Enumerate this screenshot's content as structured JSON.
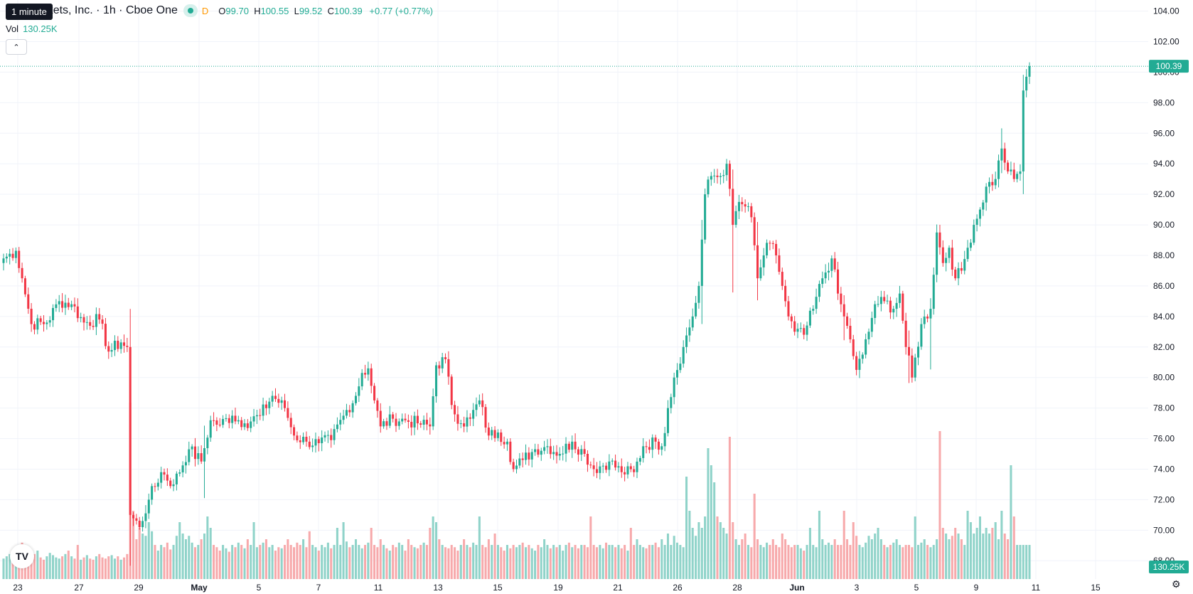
{
  "legend": {
    "symbol": "ood Markets, Inc. · 1h · Cboe One",
    "d_badge": "D",
    "o_label": "O",
    "o_value": "99.70",
    "h_label": "H",
    "h_value": "100.55",
    "l_label": "L",
    "l_value": "99.52",
    "c_label": "C",
    "c_value": "100.39",
    "change": "+0.77 (+0.77%)"
  },
  "tooltip": "1 minute",
  "volume": {
    "label": "Vol",
    "value": "130.25K"
  },
  "collapse_icon": "chevron-up-icon",
  "logo": "tradingview-logo",
  "settings_icon": "gear-icon",
  "colors": {
    "up": "#22ab94",
    "down": "#f23645",
    "up_vol": "#8fd3c9",
    "down_vol": "#f7a9ab",
    "grid": "#f0f3fa",
    "axis_text": "#131722"
  },
  "chart_data": {
    "type": "candlestick",
    "y_ticks": [
      "104.00",
      "102.00",
      "100.00",
      "98.00",
      "96.00",
      "94.00",
      "92.00",
      "90.00",
      "88.00",
      "86.00",
      "84.00",
      "82.00",
      "80.00",
      "78.00",
      "76.00",
      "74.00",
      "72.00",
      "70.00",
      "68.00"
    ],
    "ylim": [
      66.8,
      104.4
    ],
    "x_ticks": [
      "23",
      "27",
      "29",
      "May",
      "5",
      "7",
      "11",
      "13",
      "15",
      "19",
      "21",
      "26",
      "28",
      "Jun",
      "3",
      "5",
      "9",
      "11",
      "15"
    ],
    "last_price_label": "100.39",
    "last_price": 100.39,
    "volume_label": "130.25K",
    "grid": true,
    "anchors": [
      [
        0,
        87.8
      ],
      [
        4,
        88.3
      ],
      [
        6,
        86.5
      ],
      [
        9,
        83.5
      ],
      [
        14,
        83.6
      ],
      [
        18,
        85.0
      ],
      [
        22,
        84.8
      ],
      [
        26,
        83.6
      ],
      [
        31,
        83.8
      ],
      [
        34,
        81.7
      ],
      [
        38,
        82.3
      ],
      [
        40,
        82.0
      ],
      [
        41,
        71.0
      ],
      [
        44,
        70.2
      ],
      [
        47,
        72.0
      ],
      [
        51,
        73.8
      ],
      [
        55,
        73.0
      ],
      [
        60,
        75.3
      ],
      [
        64,
        74.5
      ],
      [
        67,
        77.2
      ],
      [
        70,
        76.9
      ],
      [
        74,
        77.5
      ],
      [
        78,
        77.0
      ],
      [
        83,
        77.5
      ],
      [
        87,
        78.8
      ],
      [
        91,
        78.0
      ],
      [
        94,
        76.2
      ],
      [
        98,
        75.8
      ],
      [
        102,
        75.7
      ],
      [
        106,
        75.9
      ],
      [
        110,
        77.5
      ],
      [
        114,
        78.8
      ],
      [
        116,
        80.3
      ],
      [
        118,
        80.6
      ],
      [
        120,
        78.5
      ],
      [
        122,
        76.8
      ],
      [
        126,
        77.3
      ],
      [
        130,
        77.2
      ],
      [
        134,
        77.0
      ],
      [
        138,
        76.8
      ],
      [
        140,
        80.8
      ],
      [
        143,
        81.2
      ],
      [
        145,
        78.2
      ],
      [
        148,
        77.0
      ],
      [
        151,
        77.3
      ],
      [
        154,
        78.5
      ],
      [
        157,
        76.2
      ],
      [
        160,
        76.4
      ],
      [
        163,
        75.8
      ],
      [
        165,
        74.0
      ],
      [
        168,
        74.6
      ],
      [
        172,
        75.3
      ],
      [
        176,
        75.5
      ],
      [
        180,
        75.0
      ],
      [
        184,
        75.8
      ],
      [
        188,
        75.0
      ],
      [
        191,
        74.0
      ],
      [
        196,
        74.5
      ],
      [
        200,
        73.8
      ],
      [
        204,
        73.8
      ],
      [
        207,
        75.5
      ],
      [
        211,
        75.8
      ],
      [
        213,
        75.5
      ],
      [
        215,
        78.0
      ],
      [
        217,
        80.0
      ],
      [
        220,
        82.0
      ],
      [
        223,
        84.0
      ],
      [
        225,
        86.0
      ],
      [
        227,
        92.0
      ],
      [
        229,
        93.2
      ],
      [
        232,
        93.2
      ],
      [
        234,
        94.0
      ],
      [
        236,
        90.0
      ],
      [
        238,
        91.5
      ],
      [
        240,
        91.2
      ],
      [
        242,
        90.5
      ],
      [
        244,
        86.5
      ],
      [
        246,
        88.0
      ],
      [
        248,
        88.8
      ],
      [
        250,
        88.0
      ],
      [
        252,
        86.0
      ],
      [
        254,
        84.0
      ],
      [
        256,
        83.0
      ],
      [
        259,
        82.8
      ],
      [
        262,
        84.5
      ],
      [
        265,
        86.5
      ],
      [
        268,
        87.8
      ],
      [
        270,
        85.5
      ],
      [
        272,
        84.0
      ],
      [
        274,
        82.5
      ],
      [
        276,
        80.5
      ],
      [
        278,
        81.5
      ],
      [
        280,
        83.0
      ],
      [
        282,
        84.8
      ],
      [
        285,
        85.0
      ],
      [
        288,
        84.5
      ],
      [
        290,
        85.5
      ],
      [
        292,
        82.0
      ],
      [
        294,
        80.0
      ],
      [
        297,
        83.5
      ],
      [
        300,
        84.5
      ],
      [
        302,
        89.5
      ],
      [
        304,
        87.5
      ],
      [
        306,
        88.5
      ],
      [
        308,
        86.5
      ],
      [
        310,
        87.0
      ],
      [
        312,
        88.5
      ],
      [
        314,
        90.0
      ],
      [
        316,
        91.0
      ],
      [
        318,
        92.5
      ],
      [
        321,
        93.0
      ],
      [
        323,
        95.0
      ],
      [
        325,
        93.5
      ],
      [
        327,
        93.0
      ],
      [
        329,
        93.5
      ],
      [
        330,
        98.8
      ],
      [
        331,
        99.7
      ],
      [
        332,
        100.39
      ]
    ],
    "spikes": [
      [
        41,
        2.0,
        -3.0
      ],
      [
        65,
        1.2,
        -2.0
      ],
      [
        226,
        1.0,
        -2.0
      ],
      [
        236,
        1.0,
        -4.0
      ],
      [
        244,
        1.0,
        -1.0
      ],
      [
        272,
        0.3,
        -1.2
      ],
      [
        293,
        0.6,
        -1.5
      ],
      [
        300,
        0.2,
        -3.0
      ],
      [
        323,
        1.0,
        -0.3
      ],
      [
        330,
        0.6,
        -1.2
      ]
    ],
    "volumes": [
      0.18,
      0.2,
      0.22,
      0.19,
      0.25,
      0.3,
      0.32,
      0.27,
      0.2,
      0.18,
      0.22,
      0.25,
      0.19,
      0.17,
      0.2,
      0.23,
      0.21,
      0.19,
      0.18,
      0.2,
      0.22,
      0.25,
      0.2,
      0.18,
      0.3,
      0.17,
      0.19,
      0.21,
      0.18,
      0.17,
      0.2,
      0.22,
      0.19,
      0.18,
      0.2,
      0.21,
      0.18,
      0.2,
      0.17,
      0.19,
      0.22,
      1.55,
      0.6,
      0.35,
      0.45,
      0.4,
      0.38,
      0.5,
      0.42,
      0.3,
      0.25,
      0.3,
      0.28,
      0.32,
      0.26,
      0.3,
      0.38,
      0.5,
      0.4,
      0.35,
      0.38,
      0.32,
      0.28,
      0.3,
      0.35,
      0.4,
      0.55,
      0.45,
      0.3,
      0.28,
      0.25,
      0.3,
      0.27,
      0.24,
      0.3,
      0.28,
      0.32,
      0.3,
      0.27,
      0.35,
      0.3,
      0.5,
      0.28,
      0.3,
      0.32,
      0.35,
      0.28,
      0.3,
      0.25,
      0.28,
      0.27,
      0.3,
      0.35,
      0.3,
      0.28,
      0.32,
      0.3,
      0.35,
      0.28,
      0.42,
      0.3,
      0.28,
      0.25,
      0.3,
      0.28,
      0.32,
      0.27,
      0.3,
      0.45,
      0.3,
      0.5,
      0.33,
      0.28,
      0.3,
      0.35,
      0.3,
      0.27,
      0.3,
      0.32,
      0.45,
      0.3,
      0.28,
      0.35,
      0.3,
      0.27,
      0.25,
      0.3,
      0.28,
      0.32,
      0.3,
      0.25,
      0.35,
      0.3,
      0.28,
      0.27,
      0.3,
      0.32,
      0.3,
      0.45,
      0.55,
      0.5,
      0.35,
      0.3,
      0.28,
      0.27,
      0.3,
      0.28,
      0.25,
      0.3,
      0.35,
      0.3,
      0.28,
      0.32,
      0.3,
      0.55,
      0.3,
      0.28,
      0.35,
      0.3,
      0.4,
      0.3,
      0.28,
      0.25,
      0.3,
      0.27,
      0.3,
      0.28,
      0.3,
      0.32,
      0.28,
      0.3,
      0.27,
      0.25,
      0.3,
      0.28,
      0.35,
      0.3,
      0.27,
      0.3,
      0.28,
      0.3,
      0.25,
      0.3,
      0.32,
      0.28,
      0.3,
      0.27,
      0.3,
      0.3,
      0.28,
      0.55,
      0.3,
      0.28,
      0.3,
      0.27,
      0.32,
      0.3,
      0.3,
      0.28,
      0.3,
      0.27,
      0.3,
      0.25,
      0.45,
      0.3,
      0.35,
      0.3,
      0.28,
      0.27,
      0.3,
      0.3,
      0.32,
      0.28,
      0.35,
      0.3,
      0.4,
      0.3,
      0.38,
      0.32,
      0.3,
      0.28,
      0.9,
      0.6,
      0.45,
      0.38,
      0.5,
      0.45,
      0.55,
      1.15,
      1.0,
      0.85,
      0.55,
      0.5,
      0.45,
      0.4,
      1.25,
      0.5,
      0.35,
      0.3,
      0.35,
      0.4,
      0.3,
      0.28,
      0.75,
      0.35,
      0.3,
      0.28,
      0.32,
      0.3,
      0.35,
      0.3,
      0.28,
      0.4,
      0.35,
      0.3,
      0.28,
      0.3,
      0.3,
      0.27,
      0.25,
      0.3,
      0.45,
      0.3,
      0.28,
      0.6,
      0.35,
      0.3,
      0.32,
      0.3,
      0.35,
      0.3,
      0.3,
      0.6,
      0.35,
      0.3,
      0.5,
      0.38,
      0.3,
      0.28,
      0.32,
      0.38,
      0.35,
      0.4,
      0.45,
      0.35,
      0.3,
      0.28,
      0.3,
      0.32,
      0.35,
      0.3,
      0.28,
      0.3,
      0.3,
      0.28,
      0.55,
      0.3,
      0.32,
      0.35,
      0.3,
      0.28,
      0.3,
      0.35,
      1.3,
      0.45,
      0.4,
      0.35,
      0.38,
      0.45,
      0.4,
      0.35,
      0.3,
      0.6,
      0.5,
      0.4,
      0.45,
      0.55,
      0.4,
      0.45,
      0.4,
      0.45,
      0.5,
      0.35,
      0.6,
      0.4,
      0.35,
      1.0,
      0.55,
      0.3
    ]
  }
}
